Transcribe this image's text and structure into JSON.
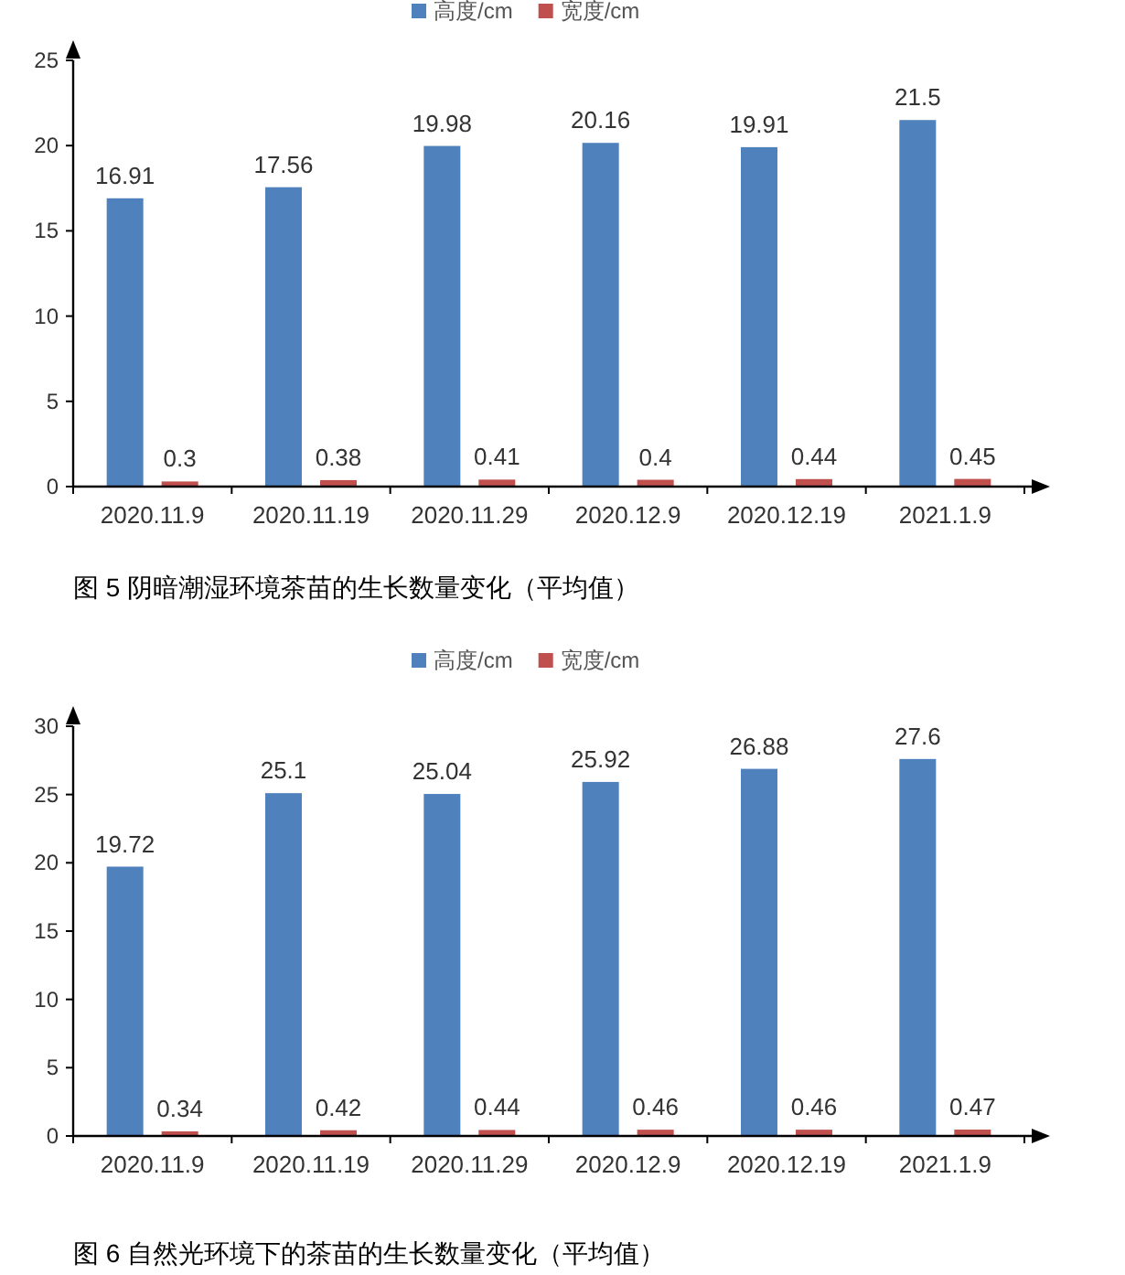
{
  "chart_data": [
    {
      "type": "bar",
      "title": "图 5 阴暗潮湿环境茶苗的生长数量变化（平均值）",
      "categories": [
        "2020.11.9",
        "2020.11.19",
        "2020.11.29",
        "2020.12.9",
        "2020.12.19",
        "2021.1.9"
      ],
      "series": [
        {
          "name": "高度/cm",
          "color": "#4f81bd",
          "values": [
            16.91,
            17.56,
            19.98,
            20.16,
            19.91,
            21.5
          ]
        },
        {
          "name": "宽度/cm",
          "color": "#c0504d",
          "values": [
            0.3,
            0.38,
            0.41,
            0.4,
            0.44,
            0.45
          ]
        }
      ],
      "ylim": [
        0,
        25
      ],
      "yticks": [
        0,
        5,
        10,
        15,
        20,
        25
      ],
      "data_labels": true,
      "legend": "top",
      "grid": false
    },
    {
      "type": "bar",
      "title": "图 6 自然光环境下的茶苗的生长数量变化（平均值）",
      "categories": [
        "2020.11.9",
        "2020.11.19",
        "2020.11.29",
        "2020.12.9",
        "2020.12.19",
        "2021.1.9"
      ],
      "series": [
        {
          "name": "高度/cm",
          "color": "#4f81bd",
          "values": [
            19.72,
            25.1,
            25.04,
            25.92,
            26.88,
            27.6
          ]
        },
        {
          "name": "宽度/cm",
          "color": "#c0504d",
          "values": [
            0.34,
            0.42,
            0.44,
            0.46,
            0.46,
            0.47
          ]
        }
      ],
      "ylim": [
        0,
        30
      ],
      "yticks": [
        0,
        5,
        10,
        15,
        20,
        25,
        30
      ],
      "data_labels": true,
      "legend": "top",
      "grid": false
    }
  ]
}
